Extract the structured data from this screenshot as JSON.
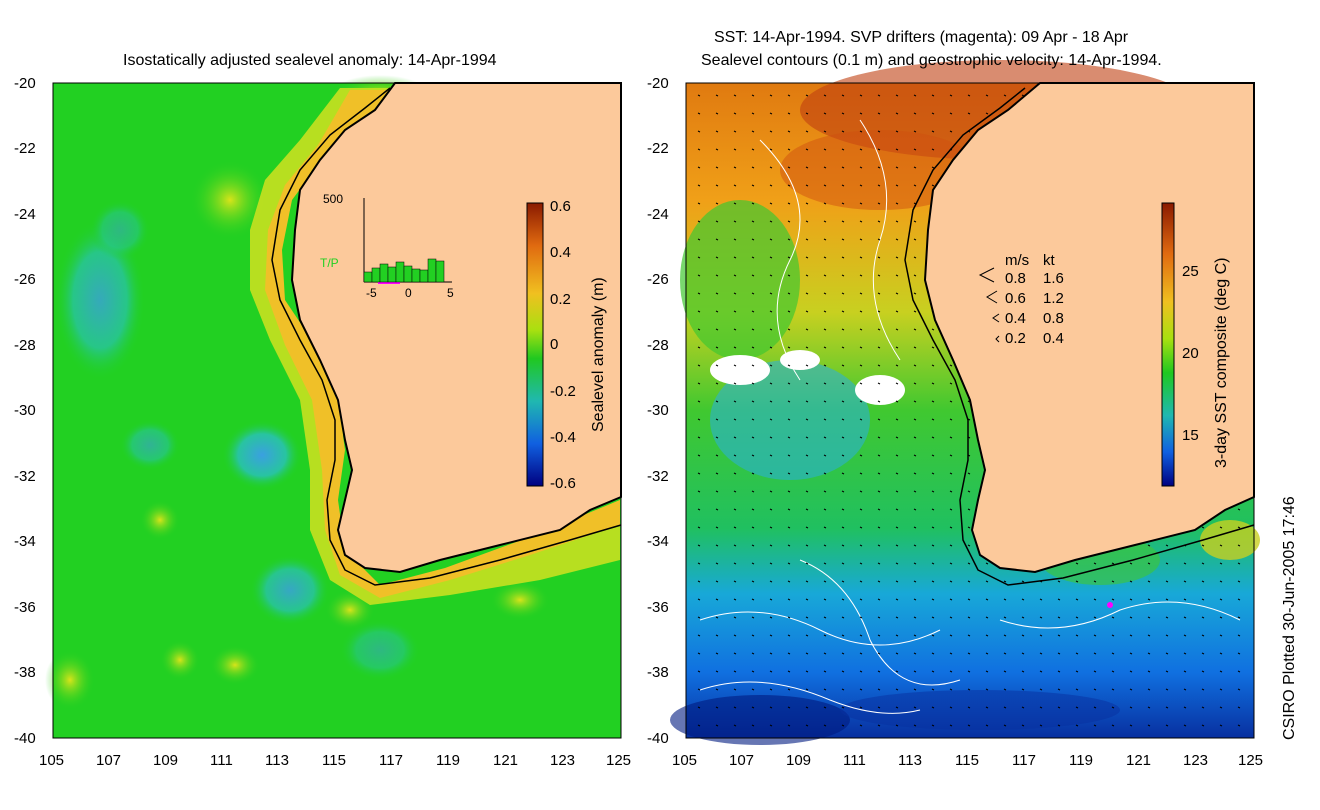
{
  "left_panel": {
    "title": "Isostatically adjusted sealevel anomaly: 14-Apr-1994",
    "x_ticks": [
      "105",
      "107",
      "109",
      "111",
      "113",
      "115",
      "117",
      "119",
      "121",
      "123",
      "125"
    ],
    "y_ticks": [
      "-20",
      "-22",
      "-24",
      "-26",
      "-28",
      "-30",
      "-32",
      "-34",
      "-36",
      "-38",
      "-40"
    ],
    "colorbar": {
      "label": "Sealevel anomaly (m)",
      "ticks": [
        "0.6",
        "0.4",
        "0.2",
        "0",
        "-0.2",
        "-0.4",
        "-0.6"
      ],
      "range": [
        -0.6,
        0.6
      ]
    },
    "inset": {
      "ymax_label": "500",
      "series_label": "T/P",
      "x_ticks": [
        "-5",
        "0",
        "5"
      ],
      "bars": [
        60,
        85,
        110,
        90,
        120,
        95,
        80,
        75,
        140,
        130
      ]
    }
  },
  "right_panel": {
    "title_line1": "SST: 14-Apr-1994. SVP drifters (magenta): 09 Apr - 18 Apr",
    "title_line2": "Sealevel contours (0.1 m) and geostrophic velocity: 14-Apr-1994.",
    "x_ticks": [
      "105",
      "107",
      "109",
      "111",
      "113",
      "115",
      "117",
      "119",
      "121",
      "123",
      "125"
    ],
    "y_ticks": [
      "-20",
      "-22",
      "-24",
      "-26",
      "-28",
      "-30",
      "-32",
      "-34",
      "-36",
      "-38",
      "-40"
    ],
    "colorbar": {
      "label": "3-day SST composite (deg C)",
      "ticks": [
        "25",
        "20",
        "15"
      ]
    },
    "velocity_legend": {
      "header_ms": "m/s",
      "header_kt": "kt",
      "rows": [
        {
          "ms": "0.8",
          "kt": "1.6"
        },
        {
          "ms": "0.6",
          "kt": "1.2"
        },
        {
          "ms": "0.4",
          "kt": "0.8"
        },
        {
          "ms": "0.2",
          "kt": "0.4"
        }
      ]
    }
  },
  "credit": "CSIRO Plotted 30-Jun-2005 17:46",
  "colors": {
    "land": "#fcc99b",
    "ocean_green": "#22d022",
    "coast": "#000000",
    "drifter": "#ff00ff"
  }
}
